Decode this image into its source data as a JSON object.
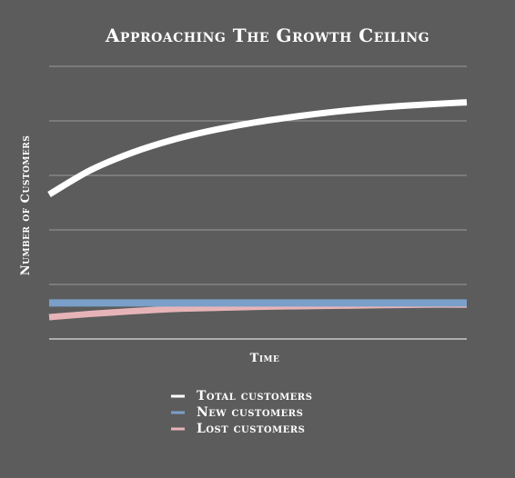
{
  "chart_data": {
    "type": "line",
    "title": "Approaching The Growth Ceiling",
    "xlabel": "Time",
    "ylabel": "Number of Customers",
    "x": [
      0,
      1,
      2,
      3,
      4,
      5,
      6,
      7,
      8,
      9,
      10
    ],
    "ylim": [
      0,
      5
    ],
    "grid": true,
    "legend_position": "bottom",
    "series": [
      {
        "name": "Total customers",
        "color": "#ffffff",
        "values": [
          2.65,
          3.1,
          3.42,
          3.66,
          3.84,
          3.98,
          4.09,
          4.18,
          4.25,
          4.3,
          4.34
        ]
      },
      {
        "name": "New customers",
        "color": "#7a9fc9",
        "values": [
          0.66,
          0.66,
          0.66,
          0.66,
          0.66,
          0.66,
          0.66,
          0.66,
          0.66,
          0.66,
          0.66
        ]
      },
      {
        "name": "Lost customers",
        "color": "#e6b4b8",
        "values": [
          0.4,
          0.46,
          0.51,
          0.55,
          0.57,
          0.59,
          0.6,
          0.61,
          0.62,
          0.63,
          0.63
        ]
      }
    ]
  }
}
